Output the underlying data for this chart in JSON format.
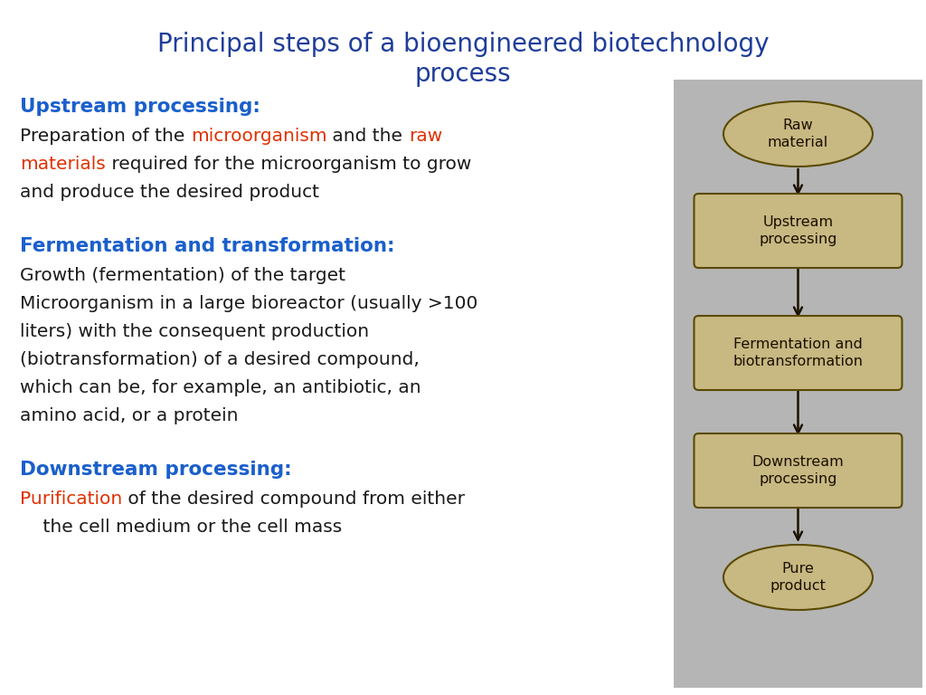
{
  "title_line1": "Principal steps of a bioengineered biotechnology",
  "title_line2": "process",
  "title_color": "#1f3d99",
  "title_fontsize": 20,
  "bg_color": "#ffffff",
  "diagram_bg": "#b5b5b5",
  "box_fill": "#c8b882",
  "box_edge": "#5a4a00",
  "flow_nodes": [
    {
      "label": "Raw\nmaterial",
      "shape": "ellipse"
    },
    {
      "label": "Upstream\nprocessing",
      "shape": "rect"
    },
    {
      "label": "Fermentation and\nbiotransformation",
      "shape": "rect"
    },
    {
      "label": "Downstream\nprocessing",
      "shape": "rect"
    },
    {
      "label": "Pure\nproduct",
      "shape": "ellipse"
    }
  ],
  "font_size_body": 14.5,
  "font_size_heading": 15.5,
  "font_size_node": 11.5
}
